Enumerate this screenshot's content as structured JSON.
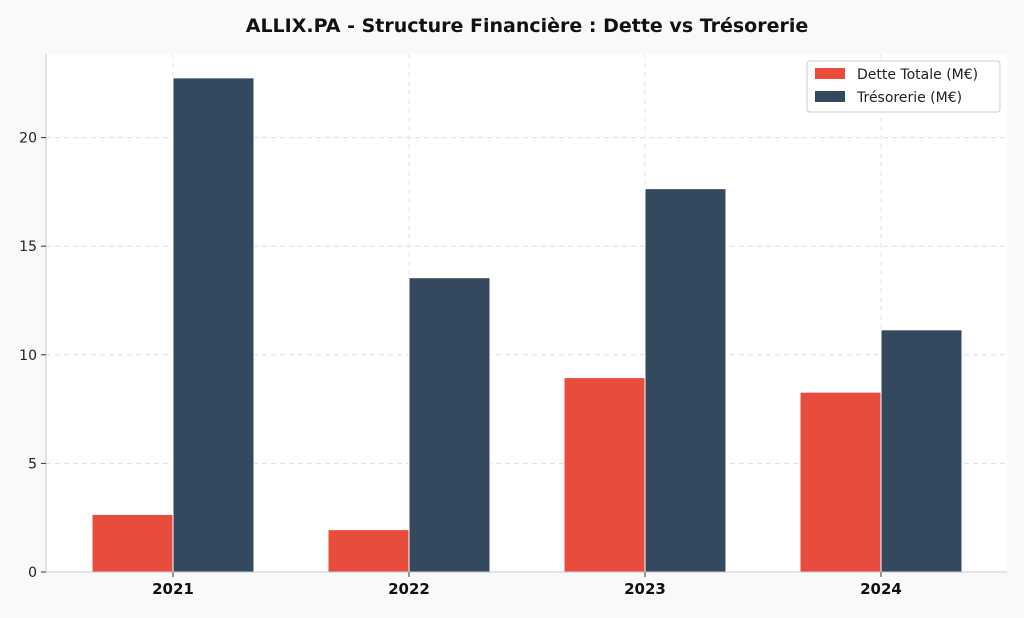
{
  "chart_data": {
    "type": "bar",
    "title": "ALLIX.PA - Structure Financière : Dette vs Trésorerie",
    "xlabel": "",
    "ylabel": "",
    "categories": [
      "2021",
      "2022",
      "2023",
      "2024"
    ],
    "series": [
      {
        "name": "Dette Totale (M€)",
        "color": "#e74c3c",
        "values": [
          2.65,
          1.95,
          8.95,
          8.28
        ]
      },
      {
        "name": "Trésorerie (M€)",
        "color": "#34495e",
        "values": [
          22.75,
          13.55,
          17.65,
          11.15
        ]
      }
    ],
    "ylim": [
      0,
      24.0
    ],
    "yticks": [
      0,
      5,
      10,
      15,
      20
    ],
    "ytick_labels": [
      "0",
      "5",
      "10",
      "15",
      "20"
    ],
    "grid": true,
    "legend_position": "top-right"
  }
}
